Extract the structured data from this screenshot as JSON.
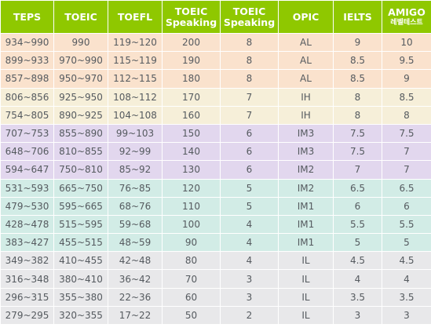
{
  "colors": {
    "header_bg": "#8fc800",
    "header_text": "#ffffff",
    "cell_text": "#555a5f"
  },
  "headers": [
    {
      "line1": "TEPS",
      "line2": ""
    },
    {
      "line1": "TOEIC",
      "line2": ""
    },
    {
      "line1": "TOEFL",
      "line2": ""
    },
    {
      "line1": "TOEIC",
      "line2": "Speaking"
    },
    {
      "line1": "TOEIC",
      "line2": "Speaking"
    },
    {
      "line1": "OPIC",
      "line2": ""
    },
    {
      "line1": "IELTS",
      "line2": ""
    },
    {
      "line1": "AMIGO",
      "line2": "레벨테스트",
      "line2_small": true
    }
  ],
  "rows": [
    {
      "bg": "#fae2cd",
      "cells": [
        "934~990",
        "990",
        "119~120",
        "200",
        "8",
        "AL",
        "9",
        "10"
      ]
    },
    {
      "bg": "#fae2cd",
      "cells": [
        "899~933",
        "970~990",
        "115~119",
        "190",
        "8",
        "AL",
        "8.5",
        "9.5"
      ]
    },
    {
      "bg": "#fae2cd",
      "cells": [
        "857~898",
        "950~970",
        "112~115",
        "180",
        "8",
        "AL",
        "8.5",
        "9"
      ]
    },
    {
      "bg": "#f6efd9",
      "cells": [
        "806~856",
        "925~950",
        "108~112",
        "170",
        "7",
        "IH",
        "8",
        "8.5"
      ]
    },
    {
      "bg": "#f6efd9",
      "cells": [
        "754~805",
        "890~925",
        "104~108",
        "160",
        "7",
        "IH",
        "8",
        "8"
      ]
    },
    {
      "bg": "#e2d7ee",
      "cells": [
        "707~753",
        "855~890",
        "99~103",
        "150",
        "6",
        "IM3",
        "7.5",
        "7.5"
      ]
    },
    {
      "bg": "#e2d7ee",
      "cells": [
        "648~706",
        "810~855",
        "92~99",
        "140",
        "6",
        "IM3",
        "7.5",
        "7"
      ]
    },
    {
      "bg": "#e2d7ee",
      "cells": [
        "594~647",
        "750~810",
        "85~92",
        "130",
        "6",
        "IM2",
        "7",
        "7"
      ]
    },
    {
      "bg": "#d2ece6",
      "cells": [
        "531~593",
        "665~750",
        "76~85",
        "120",
        "5",
        "IM2",
        "6.5",
        "6.5"
      ]
    },
    {
      "bg": "#d2ece6",
      "cells": [
        "479~530",
        "595~665",
        "68~76",
        "110",
        "5",
        "IM1",
        "6",
        "6"
      ]
    },
    {
      "bg": "#d2ece6",
      "cells": [
        "428~478",
        "515~595",
        "59~68",
        "100",
        "4",
        "IM1",
        "5.5",
        "5.5"
      ]
    },
    {
      "bg": "#d2ece6",
      "cells": [
        "383~427",
        "455~515",
        "48~59",
        "90",
        "4",
        "IM1",
        "5",
        "5"
      ]
    },
    {
      "bg": "#e8e8ea",
      "cells": [
        "349~382",
        "410~455",
        "42~48",
        "80",
        "4",
        "IL",
        "4.5",
        "4.5"
      ]
    },
    {
      "bg": "#e8e8ea",
      "cells": [
        "316~348",
        "380~410",
        "36~42",
        "70",
        "3",
        "IL",
        "4",
        "4"
      ]
    },
    {
      "bg": "#e8e8ea",
      "cells": [
        "296~315",
        "355~380",
        "22~36",
        "60",
        "3",
        "IL",
        "3.5",
        "3.5"
      ]
    },
    {
      "bg": "#e8e8ea",
      "cells": [
        "279~295",
        "320~355",
        "17~22",
        "50",
        "2",
        "IL",
        "3",
        "3"
      ]
    }
  ]
}
